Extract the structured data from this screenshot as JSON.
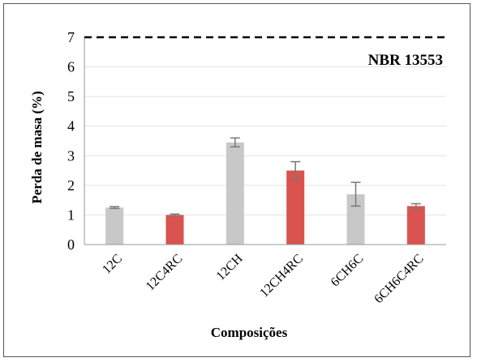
{
  "chart_data": {
    "type": "bar",
    "categories": [
      "12C",
      "12C4RC",
      "12CH",
      "12CH4RC",
      "6CH6C",
      "6CH6C4RC"
    ],
    "values": [
      1.25,
      1.0,
      3.45,
      2.5,
      1.7,
      1.3
    ],
    "errors": [
      0.03,
      0.03,
      0.15,
      0.3,
      0.4,
      0.08
    ],
    "bar_colors": [
      "#c8c8c8",
      "#d9534f",
      "#c8c8c8",
      "#d9534f",
      "#c8c8c8",
      "#d9534f"
    ],
    "ylabel": "Perda de masa (%)",
    "xlabel": "Composições",
    "ylim": [
      0,
      7
    ],
    "yticks": [
      0,
      1,
      2,
      3,
      4,
      5,
      6,
      7
    ],
    "grid": true,
    "reference_line": {
      "value": 7,
      "label": "NBR 13553",
      "style": "dashed"
    }
  }
}
